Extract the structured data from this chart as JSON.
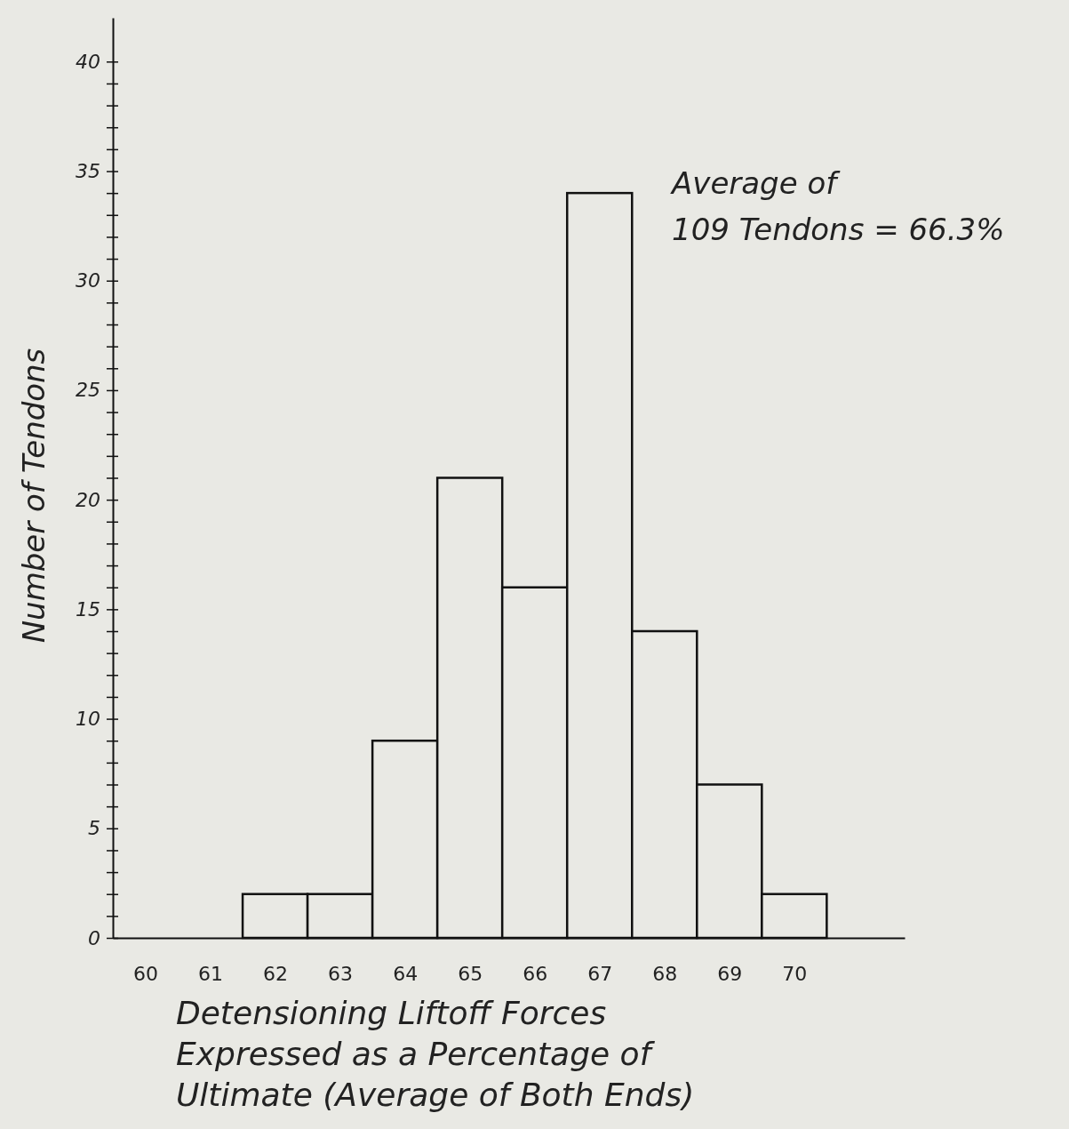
{
  "chart_data": {
    "type": "histogram",
    "ylabel": "Number of Tendons",
    "xlabel": "Detensioning Liftoff Forces\nExpressed as a Percentage of\nUltimate (Average of Both Ends)",
    "annotations": [
      "Average of\n109 Tendons = 66.3%"
    ],
    "bins": [
      61.5,
      62.5,
      63.5,
      64.5,
      65.5,
      66.5,
      67.5,
      68.5,
      69.5,
      70.5
    ],
    "values": [
      2,
      2,
      9,
      21,
      16,
      34,
      14,
      7,
      2
    ],
    "color": "#e9e9e4",
    "xlim": [
      59.5,
      71.7
    ],
    "xticks": [
      60,
      61,
      62,
      63,
      64,
      65,
      66,
      67,
      68,
      69,
      70
    ],
    "ylim": [
      0,
      42
    ],
    "yticks": [
      0,
      {
        "value": 1,
        "label": null
      },
      {
        "value": 2,
        "label": null
      },
      {
        "value": 3,
        "label": null
      },
      {
        "value": 4,
        "label": null
      },
      5,
      {
        "value": 6,
        "label": null
      },
      {
        "value": 7,
        "label": null
      },
      {
        "value": 8,
        "label": null
      },
      {
        "value": 9,
        "label": null
      },
      10,
      {
        "value": 11,
        "label": null
      },
      {
        "value": 12,
        "label": null
      },
      {
        "value": 13,
        "label": null
      },
      {
        "value": 14,
        "label": null
      },
      15,
      {
        "value": 16,
        "label": null
      },
      {
        "value": 17,
        "label": null
      },
      {
        "value": 18,
        "label": null
      },
      {
        "value": 19,
        "label": null
      },
      20,
      {
        "value": 21,
        "label": null
      },
      {
        "value": 22,
        "label": null
      },
      {
        "value": 23,
        "label": null
      },
      {
        "value": 24,
        "label": null
      },
      25,
      {
        "value": 26,
        "label": null
      },
      {
        "value": 27,
        "label": null
      },
      {
        "value": 28,
        "label": null
      },
      {
        "value": 29,
        "label": null
      },
      30,
      {
        "value": 31,
        "label": null
      },
      {
        "value": 32,
        "label": null
      },
      {
        "value": 33,
        "label": null
      },
      {
        "value": 34,
        "label": null
      },
      35,
      {
        "value": 36,
        "label": null
      },
      {
        "value": 37,
        "label": null
      },
      {
        "value": 38,
        "label": null
      },
      {
        "value": 39,
        "label": null
      },
      40
    ],
    "grid": false
  }
}
